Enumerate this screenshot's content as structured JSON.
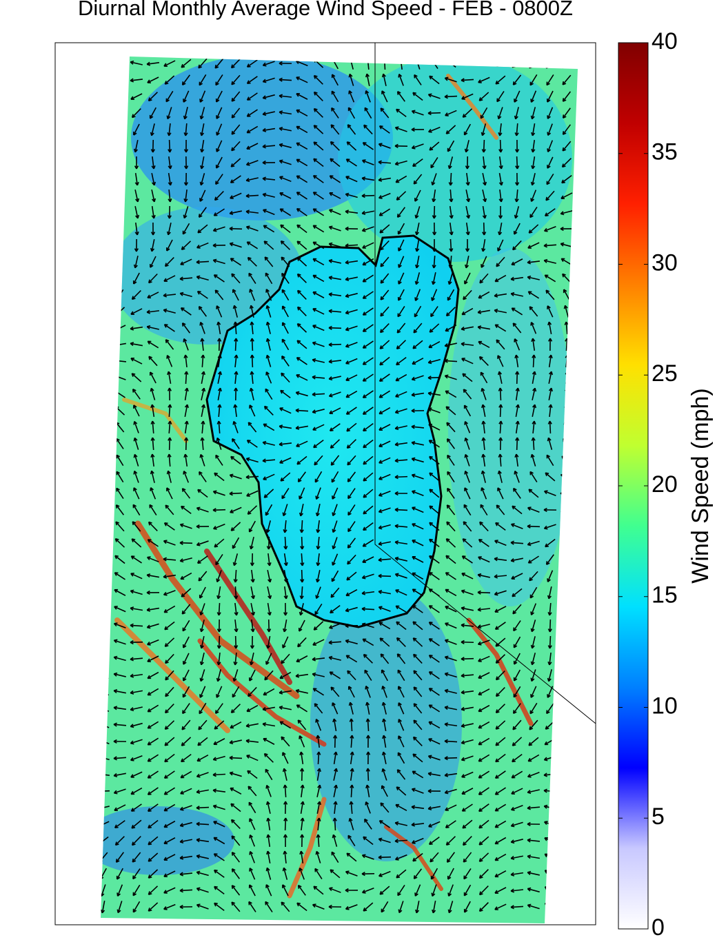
{
  "title": "Diurnal Monthly Average Wind Speed - FEB - 0800Z",
  "colorbar": {
    "label": "Wind Speed (mph)",
    "lim": [
      0,
      40
    ],
    "ticks": [
      0,
      5,
      10,
      15,
      20,
      25,
      30,
      35,
      40
    ],
    "colors": [
      "#ffffff",
      "#c8c8ff",
      "#0000ff",
      "#0080ff",
      "#00e0ff",
      "#40ff90",
      "#c0ff30",
      "#ffe000",
      "#ff8000",
      "#ff2000",
      "#c00000",
      "#800000"
    ]
  }
}
